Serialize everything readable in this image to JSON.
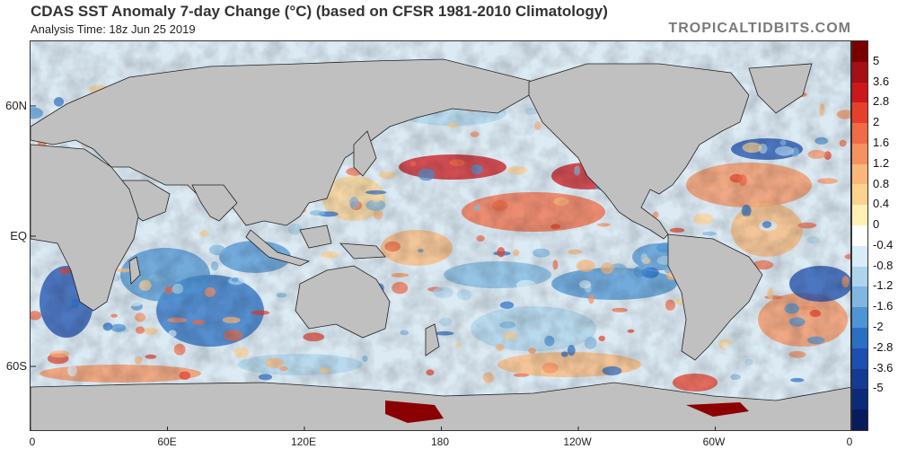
{
  "header": {
    "title": "CDAS SST Anomaly 7-day Change (°C) (based on CFSR 1981-2010 Climatology)",
    "analysis_time": "Analysis Time: 18z Jun 25 2019",
    "brand": "TROPICALTIDBITS.COM"
  },
  "map": {
    "lat_labels": [
      "60N",
      "EQ",
      "60S"
    ],
    "lon_labels": [
      "0",
      "60E",
      "120E",
      "180",
      "120W",
      "60W",
      "0"
    ],
    "land_color": "#c0c0c0",
    "warm_anomaly_color": "#d9482b",
    "cool_anomaly_color": "#3b6fd6"
  },
  "colorbar": {
    "labels": [
      "5",
      "3.6",
      "2.8",
      "2",
      "1.6",
      "1.2",
      "0.8",
      "0.4",
      "0",
      "-0.4",
      "-0.8",
      "-1.2",
      "-1.6",
      "-2",
      "-2.8",
      "-3.6",
      "-5"
    ],
    "colors": [
      "#7a0000",
      "#a50f15",
      "#cb181d",
      "#e5402c",
      "#f06b46",
      "#f6925f",
      "#fab77a",
      "#fcd28f",
      "#fff0b5",
      "#ffffff",
      "#d7ecf6",
      "#aed4ec",
      "#7fb7e0",
      "#4f94d4",
      "#2a6fc4",
      "#1d4fb0",
      "#143a94",
      "#0c2a78",
      "#081b5c"
    ]
  }
}
